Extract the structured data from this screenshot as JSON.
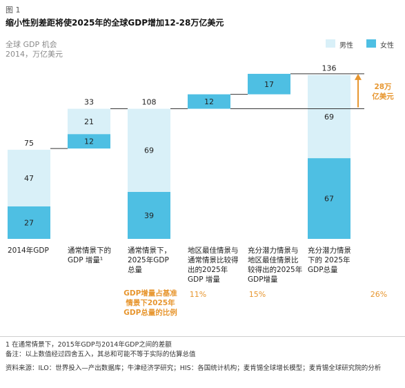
{
  "header": {
    "figure_label": "图 1",
    "title": "缩小性别差距将使2025年的全球GDP增加12-28万亿美元",
    "subtitle": "全球 GDP 机会",
    "units": "2014，万亿美元"
  },
  "legend": [
    {
      "label": "男性",
      "color": "#d9f0f8"
    },
    {
      "label": "女性",
      "color": "#4ebfe3"
    }
  ],
  "chart_data": {
    "type": "bar",
    "subtype": "waterfall",
    "categories": [
      "2014年GDP",
      "通常情景下的GDP 增量¹",
      "通常情景下，2025年GDP总量",
      "地区最佳情景与 通常情景比较得 出的2025年GDP 增量",
      "充分潜力情景与地区最佳情景比较得出的2025年GDP增量",
      "充分潜力情景下的 2025年GDP总量"
    ],
    "series": [
      {
        "name": "男性",
        "values": [
          47,
          21,
          69,
          0,
          0,
          69
        ]
      },
      {
        "name": "女性",
        "values": [
          27,
          12,
          39,
          12,
          17,
          67
        ]
      }
    ],
    "totals": [
      75,
      33,
      108,
      12,
      17,
      136
    ],
    "annotation": "28万亿美元",
    "ylim": [
      0,
      140
    ]
  },
  "pct_row": {
    "label": "GDP增量占基准情景下2025年GDP总量的比例",
    "values": [
      "11%",
      "15%",
      "26%"
    ]
  },
  "footnotes": {
    "note1": "1 在通常情景下，2015年GDP与2014年GDP之间的差额",
    "note2": "备注：以上数值经过四舍五入，其总和可能不等于实际的估算总值",
    "source": "资料来源：ILO：世界投入—产出数据库；牛津经济学研究；HIS：各国统计机构；麦肯锡全球增长模型；麦肯锡全球研究院的分析"
  }
}
